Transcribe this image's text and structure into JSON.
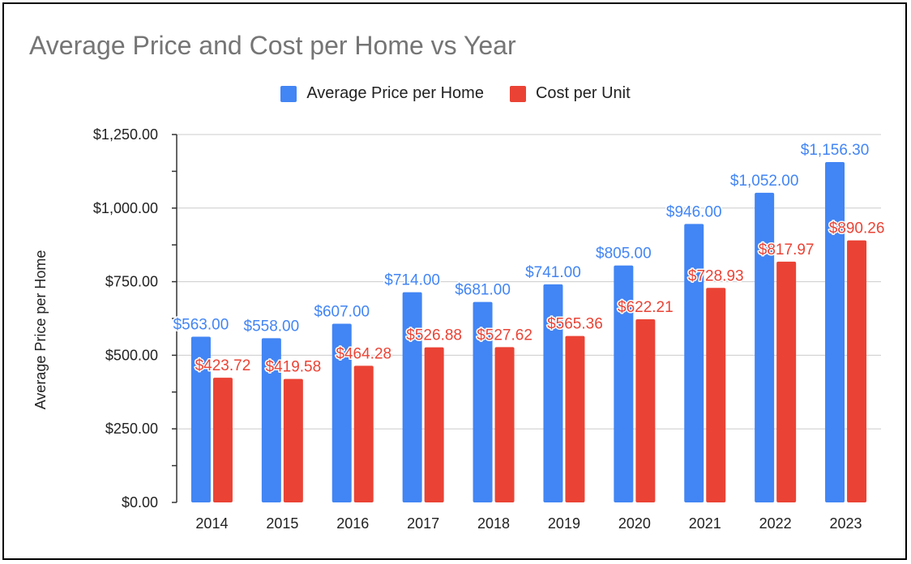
{
  "chart_data": {
    "type": "bar",
    "title": "Average Price and Cost per Home vs Year",
    "xlabel": "",
    "ylabel": "Average Price per Home",
    "categories": [
      "2014",
      "2015",
      "2016",
      "2017",
      "2018",
      "2019",
      "2020",
      "2021",
      "2022",
      "2023"
    ],
    "series": [
      {
        "name": "Average Price per Home",
        "color": "#4285f4",
        "values": [
          563.0,
          558.0,
          607.0,
          714.0,
          681.0,
          741.0,
          805.0,
          946.0,
          1052.0,
          1156.3
        ],
        "labels": [
          "$563.00",
          "$558.00",
          "$607.00",
          "$714.00",
          "$681.00",
          "$741.00",
          "$805.00",
          "$946.00",
          "$1,052.00",
          "$1,156.30"
        ]
      },
      {
        "name": "Cost per Unit",
        "color": "#ea4335",
        "values": [
          423.72,
          419.58,
          464.28,
          526.88,
          527.62,
          565.36,
          622.21,
          728.93,
          817.97,
          890.26
        ],
        "labels": [
          "$423.72",
          "$419.58",
          "$464.28",
          "$526.88",
          "$527.62",
          "$565.36",
          "$622.21",
          "$728.93",
          "$817.97",
          "$890.26"
        ]
      }
    ],
    "ylim": [
      0,
      1250
    ],
    "yticks": [
      0,
      250,
      500,
      750,
      1000,
      1250
    ],
    "ytick_labels": [
      "$0.00",
      "$250.00",
      "$500.00",
      "$750.00",
      "$1,000.00",
      "$1,250.00"
    ],
    "grid": true,
    "legend_position": "top-center"
  }
}
